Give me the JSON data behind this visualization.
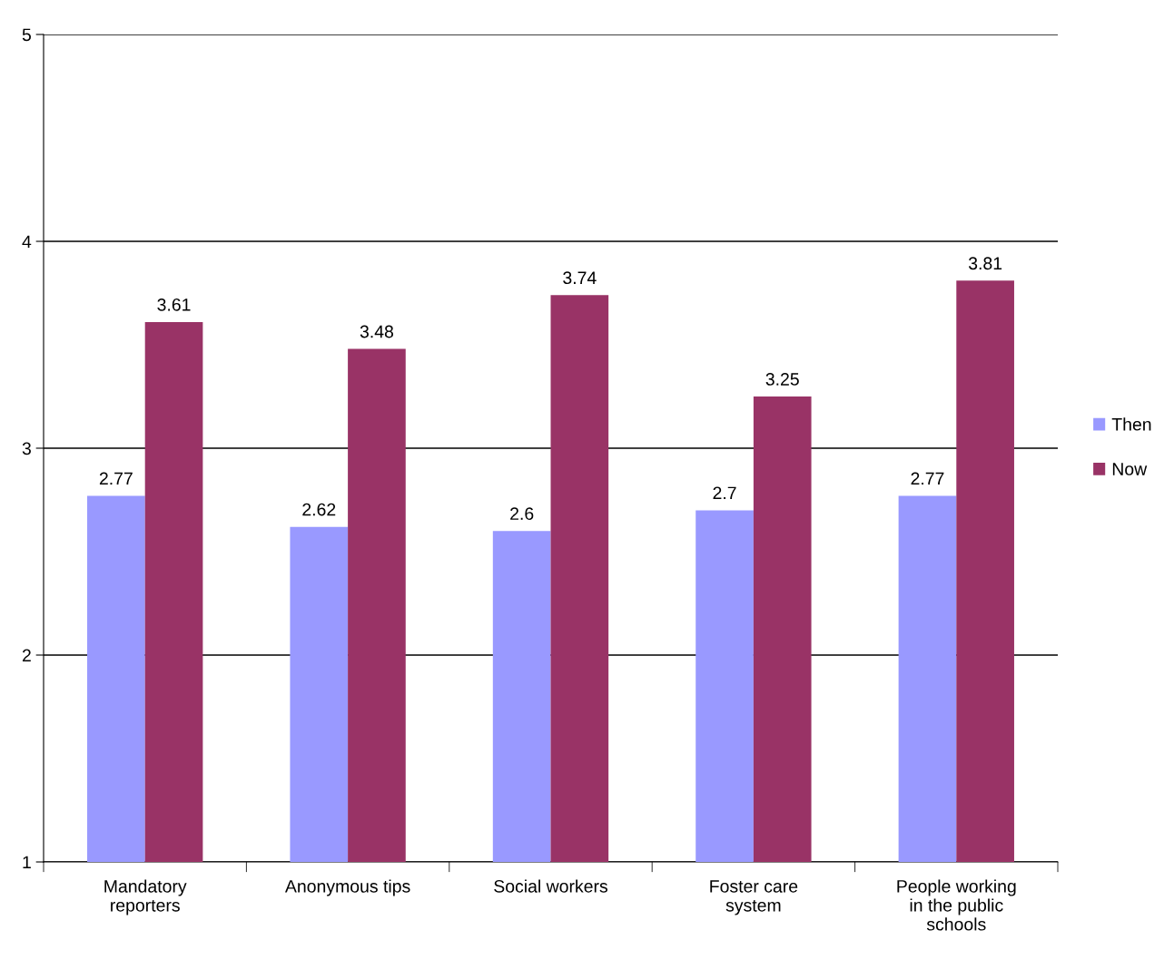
{
  "chart_data": {
    "type": "bar",
    "categories": [
      "Mandatory\nreporters",
      "Anonymous tips",
      "Social workers",
      "Foster care\nsystem",
      "People working\nin the public\nschools"
    ],
    "series": [
      {
        "name": "Then",
        "color": "#9999ff",
        "values": [
          2.77,
          2.62,
          2.6,
          2.7,
          2.77
        ]
      },
      {
        "name": "Now",
        "color": "#993366",
        "values": [
          3.61,
          3.48,
          3.74,
          3.25,
          3.81
        ]
      }
    ],
    "ylim": [
      1,
      5
    ],
    "yticks": [
      1,
      2,
      3,
      4,
      5
    ],
    "grid": "y",
    "legend": "right",
    "data_labels": true
  }
}
